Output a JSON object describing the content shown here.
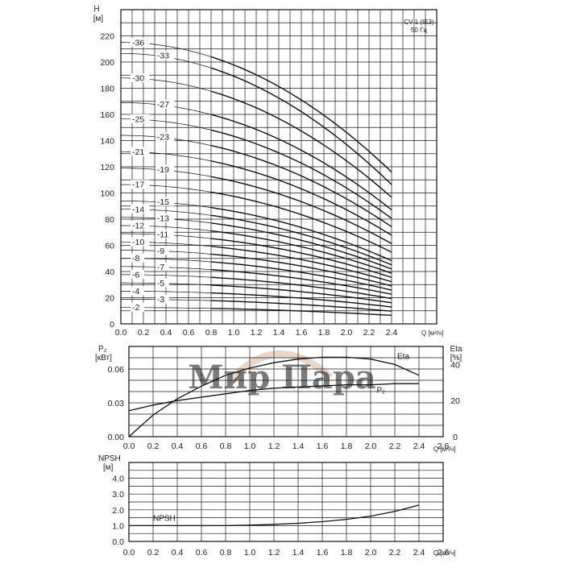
{
  "watermark": {
    "text": "Мир Пара",
    "color": "#d9b49a"
  },
  "chart_data": [
    {
      "type": "line",
      "id": "head",
      "yunit": "H",
      "yunit2": "[м]",
      "xunit": "Q [м³/ч]",
      "model": "CV 1 (IE3)",
      "freq": "50 Гц",
      "xlim": [
        0,
        2.4
      ],
      "ylim": [
        0,
        230
      ],
      "xticks": [
        "0.0",
        "0.2",
        "0.4",
        "0.6",
        "0.8",
        "1.0",
        "1.2",
        "1.4",
        "1.6",
        "1.8",
        "2.0",
        "2.2",
        "2.4"
      ],
      "yticks": [
        "0",
        "20",
        "40",
        "60",
        "80",
        "100",
        "120",
        "140",
        "160",
        "180",
        "200",
        "220"
      ],
      "q_max": 2.4,
      "q_min_bold": 0.8,
      "series": [
        {
          "name": "-2",
          "H0": 12.5,
          "Hend": 6.5
        },
        {
          "name": "-3",
          "H0": 18.8,
          "Hend": 9.7
        },
        {
          "name": "-4",
          "H0": 25.0,
          "Hend": 12.9
        },
        {
          "name": "-5",
          "H0": 31.3,
          "Hend": 16.1
        },
        {
          "name": "-6",
          "H0": 37.6,
          "Hend": 19.3
        },
        {
          "name": "-7",
          "H0": 43.8,
          "Hend": 22.6
        },
        {
          "name": "-8",
          "H0": 50.1,
          "Hend": 25.8
        },
        {
          "name": "-9",
          "H0": 56.3,
          "Hend": 29.0
        },
        {
          "name": "-10",
          "H0": 62.6,
          "Hend": 32.2
        },
        {
          "name": "-11",
          "H0": 68.9,
          "Hend": 35.5
        },
        {
          "name": "-12",
          "H0": 75.1,
          "Hend": 38.7
        },
        {
          "name": "-13",
          "H0": 81.4,
          "Hend": 41.9
        },
        {
          "name": "-14",
          "H0": 87.6,
          "Hend": 45.1
        },
        {
          "name": "-15",
          "H0": 93.9,
          "Hend": 48.3
        },
        {
          "name": "-17",
          "H0": 106.4,
          "Hend": 54.8
        },
        {
          "name": "-19",
          "H0": 118.9,
          "Hend": 61.3
        },
        {
          "name": "-21",
          "H0": 131.5,
          "Hend": 67.7
        },
        {
          "name": "-23",
          "H0": 144.0,
          "Hend": 74.2
        },
        {
          "name": "-25",
          "H0": 156.5,
          "Hend": 80.6
        },
        {
          "name": "-27",
          "H0": 169.0,
          "Hend": 87.1
        },
        {
          "name": "-30",
          "H0": 187.8,
          "Hend": 96.7
        },
        {
          "name": "-33",
          "H0": 206.6,
          "Hend": 106.4
        },
        {
          "name": "-36",
          "H0": 215.0,
          "Hend": 116.0
        }
      ]
    },
    {
      "type": "line",
      "id": "power",
      "yunit_left": "P₂",
      "yunit_left2": "[кВт]",
      "yunit_right": "Eta",
      "yunit_right2": "[%]",
      "xunit": "Q [м³/ч]",
      "xlim": [
        0,
        2.6
      ],
      "ylim_left": [
        0,
        0.08
      ],
      "ylim_right": [
        0,
        50
      ],
      "xticks": [
        "0.0",
        "0.2",
        "0.4",
        "0.6",
        "0.8",
        "1.0",
        "1.2",
        "1.4",
        "1.6",
        "1.8",
        "2.0",
        "2.2",
        "2.4",
        "2.6"
      ],
      "yticks_left": [
        "0.00",
        "0.03",
        "0.06"
      ],
      "yticks_right": [
        "0",
        "20",
        "40"
      ],
      "series": [
        {
          "name": "Eta",
          "axis": "right",
          "x": [
            0.0,
            0.2,
            0.4,
            0.6,
            0.8,
            1.0,
            1.2,
            1.4,
            1.6,
            1.8,
            2.0,
            2.2,
            2.4
          ],
          "y": [
            0,
            12,
            21,
            28,
            34,
            38,
            41,
            43,
            44,
            44,
            43,
            40,
            34
          ]
        },
        {
          "name": "P₂",
          "axis": "left",
          "x": [
            0.0,
            0.2,
            0.4,
            0.6,
            0.8,
            1.0,
            1.2,
            1.4,
            1.6,
            1.8,
            2.0,
            2.2,
            2.4
          ],
          "y": [
            0.023,
            0.028,
            0.032,
            0.035,
            0.038,
            0.041,
            0.043,
            0.044,
            0.045,
            0.046,
            0.046,
            0.047,
            0.047
          ]
        }
      ]
    },
    {
      "type": "line",
      "id": "npsh",
      "yunit": "NPSH",
      "yunit2": "[м]",
      "xunit": "Q [м³/ч]",
      "xlim": [
        0,
        2.6
      ],
      "ylim": [
        0,
        5
      ],
      "xticks": [
        "0.0",
        "0.2",
        "0.4",
        "0.6",
        "0.8",
        "1.0",
        "1.2",
        "1.4",
        "1.6",
        "1.8",
        "2.0",
        "2.2",
        "2.4",
        "2.6"
      ],
      "yticks": [
        "0.0",
        "1.0",
        "2.0",
        "3.0",
        "4.0"
      ],
      "series": [
        {
          "name": "NPSH",
          "x": [
            0.0,
            0.4,
            0.8,
            1.0,
            1.2,
            1.4,
            1.6,
            1.8,
            2.0,
            2.2,
            2.4
          ],
          "y": [
            1.0,
            1.0,
            1.0,
            1.03,
            1.08,
            1.15,
            1.25,
            1.4,
            1.6,
            1.9,
            2.3
          ]
        }
      ]
    }
  ]
}
